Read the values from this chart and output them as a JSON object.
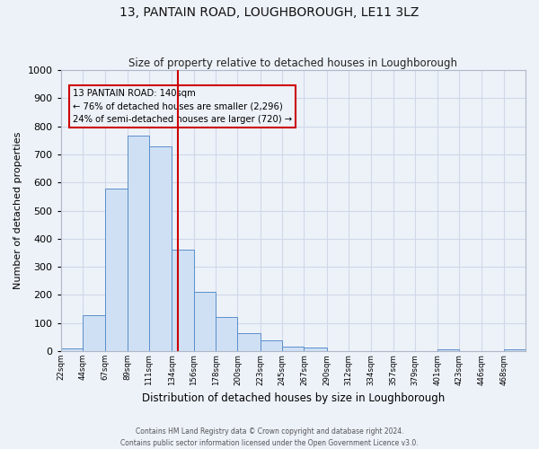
{
  "title": "13, PANTAIN ROAD, LOUGHBOROUGH, LE11 3LZ",
  "subtitle": "Size of property relative to detached houses in Loughborough",
  "xlabel": "Distribution of detached houses by size in Loughborough",
  "ylabel": "Number of detached properties",
  "bar_edges": [
    22,
    44,
    67,
    89,
    111,
    134,
    156,
    178,
    200,
    223,
    245,
    267,
    290,
    312,
    334,
    357,
    379,
    401,
    423,
    446,
    468
  ],
  "bar_heights": [
    10,
    128,
    578,
    768,
    730,
    360,
    210,
    120,
    63,
    40,
    15,
    13,
    0,
    0,
    0,
    0,
    0,
    8,
    0,
    0,
    5
  ],
  "bar_color": "#cfe0f5",
  "bar_edge_color": "#5b8fc9",
  "vline_x": 140,
  "vline_color": "#cc0000",
  "ylim": [
    0,
    1000
  ],
  "yticks": [
    0,
    100,
    200,
    300,
    400,
    500,
    600,
    700,
    800,
    900,
    1000
  ],
  "xtick_labels": [
    "22sqm",
    "44sqm",
    "67sqm",
    "89sqm",
    "111sqm",
    "134sqm",
    "156sqm",
    "178sqm",
    "200sqm",
    "223sqm",
    "245sqm",
    "267sqm",
    "290sqm",
    "312sqm",
    "334sqm",
    "357sqm",
    "379sqm",
    "401sqm",
    "423sqm",
    "446sqm",
    "468sqm"
  ],
  "annotation_title": "13 PANTAIN ROAD: 140sqm",
  "annotation_line1": "← 76% of detached houses are smaller (2,296)",
  "annotation_line2": "24% of semi-detached houses are larger (720) →",
  "annotation_box_color": "#cc0000",
  "grid_color": "#d0d8e8",
  "bg_color": "#edf2f9",
  "footer_line1": "Contains HM Land Registry data © Crown copyright and database right 2024.",
  "footer_line2": "Contains public sector information licensed under the Open Government Licence v3.0."
}
